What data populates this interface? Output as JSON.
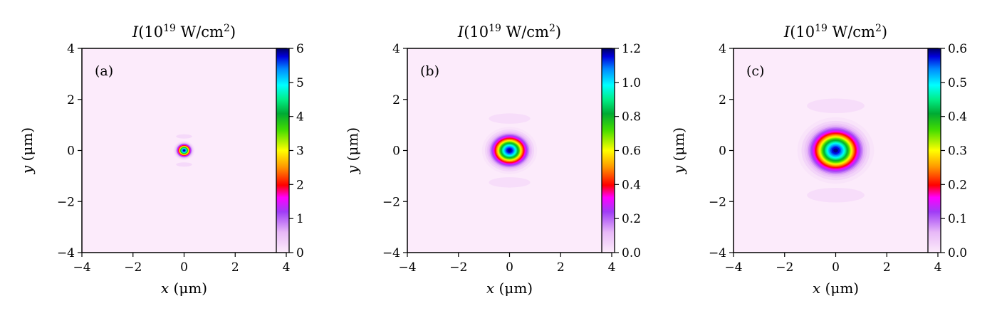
{
  "figure": {
    "panels_count": 3
  },
  "chart_data": [
    {
      "type": "heatmap",
      "panel_label": "(a)",
      "title": "I(10^19 W/cm^2)",
      "title_parts": {
        "base": "I(10",
        "exp": "19",
        "unit": " W/cm",
        "unit_exp": "2",
        "close": ")"
      },
      "xlabel": "x (μm)",
      "ylabel": "y (μm)",
      "xlim": [
        -4,
        4
      ],
      "ylim": [
        -4,
        4
      ],
      "xticks": [
        -4,
        -2,
        0,
        2,
        4
      ],
      "yticks": [
        -4,
        -2,
        0,
        2,
        4
      ],
      "x_tick_labels": [
        "−4",
        "−2",
        "0",
        "2",
        "4"
      ],
      "y_tick_labels": [
        "−4",
        "−2",
        "0",
        "2",
        "4"
      ],
      "colorbar": {
        "min": 0,
        "max": 6,
        "ticks": [
          0,
          1,
          2,
          3,
          4,
          5,
          6
        ],
        "tick_labels": [
          "0",
          "1",
          "2",
          "3",
          "4",
          "5",
          "6"
        ]
      },
      "spot": {
        "center_x": 0,
        "center_y": 0,
        "peak": 6.0,
        "radius_x_um": 0.42,
        "radius_y_um": 0.38,
        "sidelobe_y_um": 0.55,
        "sidelobe_level": 0.04
      }
    },
    {
      "type": "heatmap",
      "panel_label": "(b)",
      "title": "I(10^19 W/cm^2)",
      "title_parts": {
        "base": "I(10",
        "exp": "19",
        "unit": " W/cm",
        "unit_exp": "2",
        "close": ")"
      },
      "xlabel": "x (μm)",
      "ylabel": "y (μm)",
      "xlim": [
        -4,
        4
      ],
      "ylim": [
        -4,
        4
      ],
      "xticks": [
        -4,
        -2,
        0,
        2,
        4
      ],
      "yticks": [
        -4,
        -2,
        0,
        2,
        4
      ],
      "x_tick_labels": [
        "−4",
        "−2",
        "0",
        "2",
        "4"
      ],
      "y_tick_labels": [
        "−4",
        "−2",
        "0",
        "2",
        "4"
      ],
      "colorbar": {
        "min": 0.0,
        "max": 1.2,
        "ticks": [
          0.0,
          0.2,
          0.4,
          0.6,
          0.8,
          1.0,
          1.2
        ],
        "tick_labels": [
          "0.0",
          "0.2",
          "0.4",
          "0.6",
          "0.8",
          "1.0",
          "1.2"
        ]
      },
      "spot": {
        "center_x": 0,
        "center_y": 0,
        "peak": 1.2,
        "radius_x_um": 1.08,
        "radius_y_um": 0.92,
        "sidelobe_y_um": 1.25,
        "sidelobe_level": 0.03
      }
    },
    {
      "type": "heatmap",
      "panel_label": "(c)",
      "title": "I(10^19 W/cm^2)",
      "title_parts": {
        "base": "I(10",
        "exp": "19",
        "unit": " W/cm",
        "unit_exp": "2",
        "close": ")"
      },
      "xlabel": "x (μm)",
      "ylabel": "y (μm)",
      "xlim": [
        -4,
        4
      ],
      "ylim": [
        -4,
        4
      ],
      "xticks": [
        -4,
        -2,
        0,
        2,
        4
      ],
      "yticks": [
        -4,
        -2,
        0,
        2,
        4
      ],
      "x_tick_labels": [
        "−4",
        "−2",
        "0",
        "2",
        "4"
      ],
      "y_tick_labels": [
        "−4",
        "−2",
        "0",
        "2",
        "4"
      ],
      "colorbar": {
        "min": 0.0,
        "max": 0.6,
        "ticks": [
          0.0,
          0.1,
          0.2,
          0.3,
          0.4,
          0.5,
          0.6
        ],
        "tick_labels": [
          "0.0",
          "0.1",
          "0.2",
          "0.3",
          "0.4",
          "0.5",
          "0.6"
        ]
      },
      "spot": {
        "center_x": 0,
        "center_y": 0,
        "peak": 0.6,
        "radius_x_um": 1.5,
        "radius_y_um": 1.3,
        "sidelobe_y_um": 1.75,
        "sidelobe_level": 0.03
      }
    }
  ],
  "colormap": {
    "name": "gist_ncar_r-like",
    "stops": [
      {
        "v": 0.0,
        "color": "#fcebfb"
      },
      {
        "v": 0.1,
        "color": "#e7b8f7"
      },
      {
        "v": 0.2,
        "color": "#a03cf6"
      },
      {
        "v": 0.27,
        "color": "#ff00ff"
      },
      {
        "v": 0.33,
        "color": "#ff0000"
      },
      {
        "v": 0.42,
        "color": "#ff9900"
      },
      {
        "v": 0.5,
        "color": "#ffff00"
      },
      {
        "v": 0.6,
        "color": "#44dd00"
      },
      {
        "v": 0.68,
        "color": "#00aa33"
      },
      {
        "v": 0.75,
        "color": "#00ee88"
      },
      {
        "v": 0.82,
        "color": "#00ffff"
      },
      {
        "v": 0.9,
        "color": "#0088ff"
      },
      {
        "v": 0.96,
        "color": "#0000dd"
      },
      {
        "v": 1.0,
        "color": "#000060"
      }
    ]
  }
}
